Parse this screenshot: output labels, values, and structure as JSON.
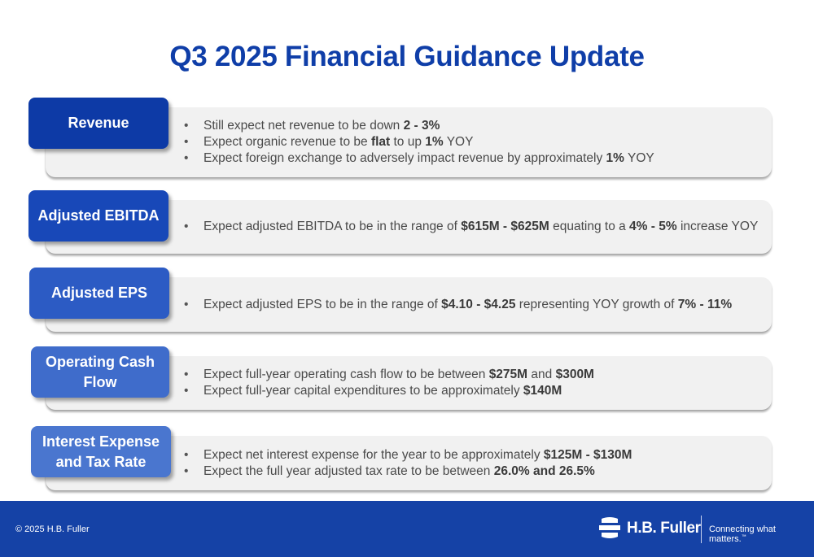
{
  "title": "Q3 2025 Financial Guidance Update",
  "sections": [
    {
      "label": "Revenue",
      "bullets": [
        [
          {
            "t": "Still expect net revenue to be down "
          },
          {
            "t": "2 - 3%",
            "b": true
          }
        ],
        [
          {
            "t": "Expect organic revenue to be "
          },
          {
            "t": "flat",
            "b": true
          },
          {
            "t": " to up "
          },
          {
            "t": "1%",
            "b": true
          },
          {
            "t": " YOY"
          }
        ],
        [
          {
            "t": "Expect foreign exchange to adversely impact revenue by approximately "
          },
          {
            "t": "1%",
            "b": true
          },
          {
            "t": " YOY"
          }
        ]
      ]
    },
    {
      "label": "Adjusted EBITDA",
      "bullets": [
        [
          {
            "t": "Expect adjusted EBITDA to be in the range of "
          },
          {
            "t": "$615M - $625M",
            "b": true
          },
          {
            "t": " equating to a "
          },
          {
            "t": "4% - 5%",
            "b": true
          },
          {
            "t": " increase YOY"
          }
        ]
      ]
    },
    {
      "label": "Adjusted EPS",
      "bullets": [
        [
          {
            "t": "Expect adjusted EPS to be in the range of "
          },
          {
            "t": "$4.10 - $4.25",
            "b": true
          },
          {
            "t": " representing YOY growth of "
          },
          {
            "t": "7% - 11%",
            "b": true
          }
        ]
      ]
    },
    {
      "label": "Operating Cash Flow",
      "bullets": [
        [
          {
            "t": "Expect full-year operating cash flow to be between "
          },
          {
            "t": "$275M",
            "b": true
          },
          {
            "t": " and "
          },
          {
            "t": "$300M",
            "b": true
          }
        ],
        [
          {
            "t": "Expect full-year capital expenditures to be approximately "
          },
          {
            "t": "$140M",
            "b": true
          }
        ]
      ]
    },
    {
      "label": "Interest Expense and Tax Rate",
      "bullets": [
        [
          {
            "t": "Expect net interest expense for the year to be approximately "
          },
          {
            "t": "$125M - $130M",
            "b": true
          }
        ],
        [
          {
            "t": "Expect the full year adjusted tax rate to be between "
          },
          {
            "t": "26.0% and 26.5%",
            "b": true
          }
        ]
      ]
    }
  ],
  "footer": {
    "copyright": "© 2025 H.B. Fuller",
    "brand": "H.B. Fuller",
    "tagline": "Connecting what matters.",
    "tagline_mark": "™"
  },
  "colors": {
    "title": "#0f3ea8",
    "footer": "#1542a6",
    "tabs": [
      "#0d3aa6",
      "#1848b8",
      "#2c5bc4",
      "#3f6ccb",
      "#4a76cf"
    ],
    "panel": "#f1f1f1"
  }
}
